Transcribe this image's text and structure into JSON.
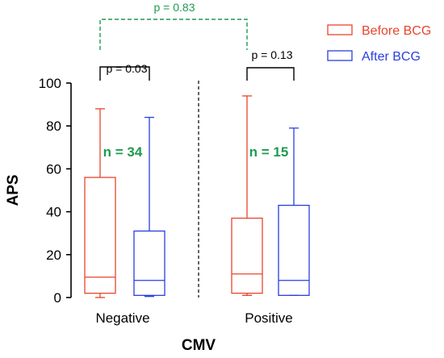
{
  "chart_data": {
    "type": "box",
    "xlabel": "CMV",
    "ylabel": "APS",
    "ylim": [
      0,
      100
    ],
    "yticks": [
      0,
      20,
      40,
      60,
      80,
      100
    ],
    "categories": [
      "Negative",
      "Positive"
    ],
    "series": [
      {
        "name": "Before BCG",
        "color": "#e8442c",
        "boxes": [
          {
            "group": "Negative",
            "min": 0,
            "q1": 2,
            "median": 9.5,
            "q3": 56,
            "max": 88
          },
          {
            "group": "Positive",
            "min": 1,
            "q1": 2,
            "median": 11,
            "q3": 37,
            "max": 94
          }
        ]
      },
      {
        "name": "After BCG",
        "color": "#2b3ee0",
        "boxes": [
          {
            "group": "Negative",
            "min": 0.5,
            "q1": 1,
            "median": 8,
            "q3": 31,
            "max": 84
          },
          {
            "group": "Positive",
            "min": 1,
            "q1": 1,
            "median": 8,
            "q3": 43,
            "max": 79
          }
        ]
      }
    ],
    "group_labels": [
      {
        "group": "Negative",
        "text": "n = 34"
      },
      {
        "group": "Positive",
        "text": "n = 15"
      }
    ],
    "comparisons": [
      {
        "text": "p = 0.03",
        "between": "Before BCG vs After BCG, Negative",
        "color": "#000000",
        "style": "solid"
      },
      {
        "text": "p = 0.13",
        "between": "Before BCG vs After BCG, Positive",
        "color": "#000000",
        "style": "solid"
      },
      {
        "text": "p = 0.83",
        "between": "Before BCG Negative vs Before BCG Positive",
        "color": "#1f9a4f",
        "style": "dashed"
      }
    ],
    "annotation_color": "#1f9a4f",
    "legend_position": "top-right"
  }
}
